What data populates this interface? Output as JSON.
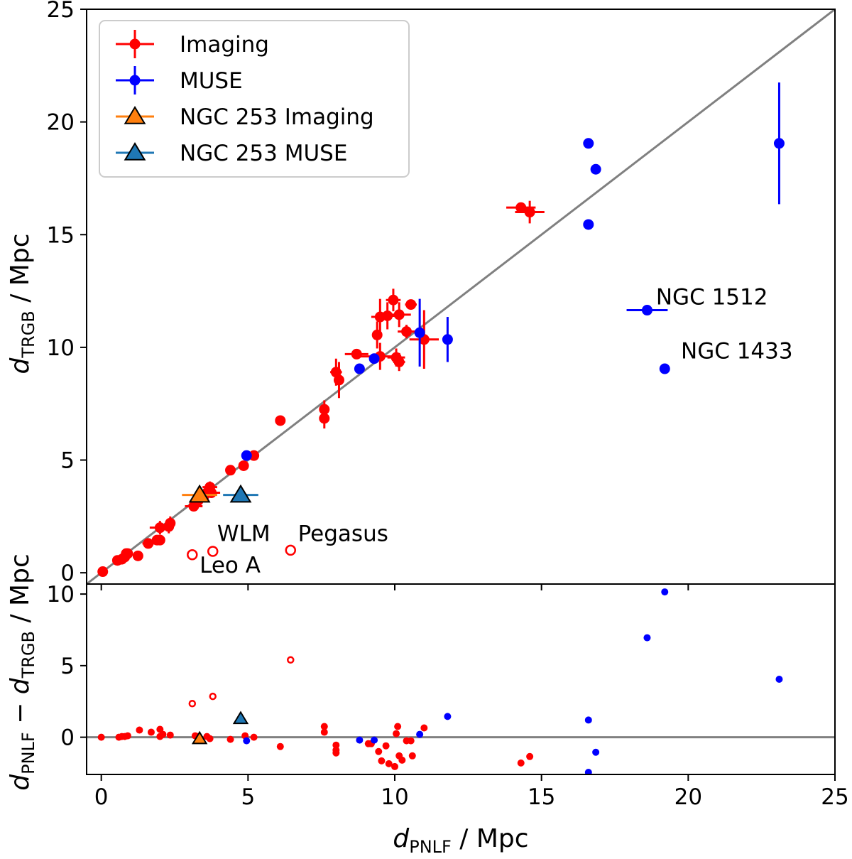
{
  "chart_data": [
    {
      "panel": "top",
      "type": "scatter",
      "xlabel": {
        "var": "d",
        "sub": "PNLF",
        "unit": " / Mpc"
      },
      "ylabel": {
        "var": "d",
        "sub": "TRGB",
        "unit": " / Mpc"
      },
      "xlim": [
        -0.5,
        25
      ],
      "ylim": [
        -0.5,
        25
      ],
      "xticks": [
        "0",
        "5",
        "10",
        "15",
        "20",
        "25"
      ],
      "yticks": [
        "0",
        "5",
        "10",
        "15",
        "20",
        "25"
      ],
      "reference_line": "y = x",
      "grid": false,
      "legend_position": "top-left",
      "legend": [
        {
          "label": "Imaging",
          "color": "#ff0000",
          "marker": "circle-errorbar"
        },
        {
          "label": "MUSE",
          "color": "#0000ff",
          "marker": "circle-errorbar"
        },
        {
          "label": "NGC 253 Imaging",
          "color": "#ff7f0e",
          "marker": "triangle-errorbar"
        },
        {
          "label": "NGC 253 MUSE",
          "color": "#1f77b4",
          "marker": "triangle-errorbar"
        }
      ],
      "series": [
        {
          "name": "Imaging",
          "color": "#ff0000",
          "points": [
            {
              "x": 0.05,
              "y": 0.05
            },
            {
              "x": 0.55,
              "y": 0.55
            },
            {
              "x": 0.7,
              "y": 0.6
            },
            {
              "x": 0.8,
              "y": 0.7
            },
            {
              "x": 0.85,
              "y": 0.85
            },
            {
              "x": 0.9,
              "y": 0.85
            },
            {
              "x": 1.25,
              "y": 0.75,
              "xerr": 0.15
            },
            {
              "x": 1.6,
              "y": 1.3,
              "xerr": 0.2
            },
            {
              "x": 1.9,
              "y": 1.45
            },
            {
              "x": 2.0,
              "y": 1.45
            },
            {
              "x": 2.0,
              "y": 2.0,
              "xerr": 0.35,
              "yerr": 0.3
            },
            {
              "x": 2.3,
              "y": 2.05,
              "yerr": 0.3
            },
            {
              "x": 2.35,
              "y": 2.2,
              "yerr": 0.3
            },
            {
              "x": 3.15,
              "y": 2.95,
              "xerr": 0.3
            },
            {
              "x": 3.3,
              "y": 3.2,
              "xerr": 0.25
            },
            {
              "x": 3.5,
              "y": 3.4,
              "xerr": 0.3,
              "yerr": 0.25
            },
            {
              "x": 3.6,
              "y": 3.55,
              "xerr": 0.3,
              "yerr": 0.25
            },
            {
              "x": 3.7,
              "y": 3.8,
              "xerr": 0.25,
              "yerr": 0.25
            },
            {
              "x": 3.75,
              "y": 3.55,
              "xerr": 0.3
            },
            {
              "x": 4.4,
              "y": 4.55,
              "xerr": 0.15,
              "yerr": 0.15
            },
            {
              "x": 4.85,
              "y": 4.75,
              "xerr": 0.15,
              "yerr": 0.15
            },
            {
              "x": 5.2,
              "y": 5.2,
              "xerr": 0.15,
              "yerr": 0.1
            },
            {
              "x": 6.1,
              "y": 6.75
            },
            {
              "x": 7.6,
              "y": 7.25,
              "yerr": 0.4
            },
            {
              "x": 7.6,
              "y": 6.85,
              "yerr": 0.45
            },
            {
              "x": 8.0,
              "y": 8.9,
              "xerr": 0.2,
              "yerr": 0.6
            },
            {
              "x": 8.1,
              "y": 8.55,
              "yerr": 0.8
            },
            {
              "x": 8.7,
              "y": 9.7,
              "xerr": 0.4
            },
            {
              "x": 9.4,
              "y": 10.55,
              "yerr": 0.6
            },
            {
              "x": 9.5,
              "y": 9.6,
              "xerr": 0.7,
              "yerr": 0.6
            },
            {
              "x": 9.5,
              "y": 11.35,
              "xerr": 0.3,
              "yerr": 0.8
            },
            {
              "x": 9.75,
              "y": 11.4,
              "xerr": 0.4,
              "yerr": 0.6
            },
            {
              "x": 9.95,
              "y": 12.1,
              "xerr": 0.25,
              "yerr": 0.5
            },
            {
              "x": 10.05,
              "y": 9.55,
              "xerr": 0.3,
              "yerr": 0.4
            },
            {
              "x": 10.15,
              "y": 9.35,
              "xerr": 0.2,
              "yerr": 0.4
            },
            {
              "x": 10.15,
              "y": 11.45,
              "xerr": 0.4,
              "yerr": 0.55
            },
            {
              "x": 10.4,
              "y": 10.7,
              "xerr": 0.3,
              "yerr": 0.3
            },
            {
              "x": 10.55,
              "y": 11.9,
              "xerr": 0.2
            },
            {
              "x": 11.0,
              "y": 10.35,
              "xerr": 0.5,
              "yerr": 1.3
            },
            {
              "x": 14.3,
              "y": 16.2,
              "xerr": 0.5
            },
            {
              "x": 14.6,
              "y": 16.0,
              "xerr": 0.5,
              "yerr": 0.5
            }
          ]
        },
        {
          "name": "Imaging (open)",
          "color": "#ff0000",
          "open": true,
          "points": [
            {
              "x": 3.1,
              "y": 0.8
            },
            {
              "x": 3.8,
              "y": 0.95
            },
            {
              "x": 6.45,
              "y": 1.0
            }
          ]
        },
        {
          "name": "MUSE",
          "color": "#0000ff",
          "points": [
            {
              "x": 4.95,
              "y": 5.2
            },
            {
              "x": 8.8,
              "y": 9.05
            },
            {
              "x": 9.3,
              "y": 9.5
            },
            {
              "x": 10.85,
              "y": 10.65,
              "yerr": 1.5
            },
            {
              "x": 11.8,
              "y": 10.35,
              "yerr": 1.0
            },
            {
              "x": 16.6,
              "y": 19.05
            },
            {
              "x": 16.85,
              "y": 17.9
            },
            {
              "x": 16.6,
              "y": 15.45
            },
            {
              "x": 18.6,
              "y": 11.65,
              "xerr": 0.7
            },
            {
              "x": 19.2,
              "y": 9.05
            },
            {
              "x": 23.1,
              "y": 19.05,
              "yerr": 2.7
            }
          ]
        },
        {
          "name": "NGC 253 Imaging",
          "color": "#ff7f0e",
          "marker": "triangle",
          "points": [
            {
              "x": 3.35,
              "y": 3.45,
              "xerr": 0.6
            }
          ]
        },
        {
          "name": "NGC 253 MUSE",
          "color": "#1f77b4",
          "marker": "triangle",
          "points": [
            {
              "x": 4.75,
              "y": 3.45,
              "xerr": 0.6
            }
          ]
        }
      ],
      "annotations": [
        {
          "text": "NGC 1512",
          "x": 18.9,
          "y": 11.9
        },
        {
          "text": "NGC 1433",
          "x": 19.75,
          "y": 9.5
        },
        {
          "text": "WLM",
          "x": 3.95,
          "y": 1.4
        },
        {
          "text": "Pegasus",
          "x": 6.7,
          "y": 1.4
        },
        {
          "text": "Leo A",
          "x": 3.35,
          "y": 0.0
        }
      ]
    },
    {
      "panel": "bottom",
      "type": "scatter",
      "xlabel": {
        "var": "d",
        "sub": "PNLF",
        "unit": " / Mpc"
      },
      "ylabel": {
        "var1": "d",
        "sub1": "PNLF",
        "minus": " − ",
        "var2": "d",
        "sub2": "TRGB",
        "unit": " / Mpc"
      },
      "xlim": [
        -0.5,
        25
      ],
      "ylim": [
        -2.6,
        10.7
      ],
      "xticks": [
        "0",
        "5",
        "10",
        "15",
        "20",
        "25"
      ],
      "yticks": [
        "0",
        "5",
        "10"
      ],
      "reference_line": "y = 0",
      "grid": false,
      "series": [
        {
          "name": "Imaging",
          "color": "#ff0000",
          "points": [
            {
              "x": 0.0,
              "y": 0.0
            },
            {
              "x": 0.6,
              "y": 0.0
            },
            {
              "x": 0.7,
              "y": 0.05
            },
            {
              "x": 0.8,
              "y": 0.05
            },
            {
              "x": 0.9,
              "y": 0.1
            },
            {
              "x": 1.3,
              "y": 0.5
            },
            {
              "x": 1.7,
              "y": 0.35
            },
            {
              "x": 2.0,
              "y": 0.55
            },
            {
              "x": 2.0,
              "y": 0.05
            },
            {
              "x": 2.1,
              "y": 0.2
            },
            {
              "x": 2.35,
              "y": 0.15
            },
            {
              "x": 3.2,
              "y": 0.1
            },
            {
              "x": 3.3,
              "y": 0.05
            },
            {
              "x": 3.6,
              "y": 0.05
            },
            {
              "x": 3.7,
              "y": -0.1
            },
            {
              "x": 4.4,
              "y": -0.15
            },
            {
              "x": 4.9,
              "y": 0.1
            },
            {
              "x": 5.2,
              "y": 0.0
            },
            {
              "x": 6.1,
              "y": -0.65
            },
            {
              "x": 7.6,
              "y": 0.75
            },
            {
              "x": 7.6,
              "y": 0.35
            },
            {
              "x": 8.0,
              "y": -0.9
            },
            {
              "x": 8.0,
              "y": -0.55
            },
            {
              "x": 8.0,
              "y": -1.1
            },
            {
              "x": 9.1,
              "y": -0.45
            },
            {
              "x": 9.2,
              "y": -0.45
            },
            {
              "x": 9.45,
              "y": -1.0
            },
            {
              "x": 9.55,
              "y": -1.65
            },
            {
              "x": 9.7,
              "y": -0.6
            },
            {
              "x": 9.8,
              "y": -1.85
            },
            {
              "x": 10.0,
              "y": -2.05
            },
            {
              "x": 10.05,
              "y": 0.25
            },
            {
              "x": 10.1,
              "y": 0.75
            },
            {
              "x": 10.15,
              "y": -1.3
            },
            {
              "x": 10.25,
              "y": -1.6
            },
            {
              "x": 10.4,
              "y": -0.25
            },
            {
              "x": 10.55,
              "y": -0.25
            },
            {
              "x": 10.6,
              "y": -1.3
            },
            {
              "x": 11.0,
              "y": 0.65
            },
            {
              "x": 14.3,
              "y": -1.8
            },
            {
              "x": 14.6,
              "y": -1.35
            }
          ]
        },
        {
          "name": "Imaging (open)",
          "color": "#ff0000",
          "open": true,
          "points": [
            {
              "x": 3.1,
              "y": 2.35
            },
            {
              "x": 3.8,
              "y": 2.85
            },
            {
              "x": 6.45,
              "y": 5.4
            }
          ]
        },
        {
          "name": "MUSE",
          "color": "#0000ff",
          "points": [
            {
              "x": 4.95,
              "y": -0.25
            },
            {
              "x": 8.8,
              "y": -0.2
            },
            {
              "x": 9.3,
              "y": -0.2
            },
            {
              "x": 10.85,
              "y": 0.2
            },
            {
              "x": 11.8,
              "y": 1.45
            },
            {
              "x": 16.6,
              "y": 1.2
            },
            {
              "x": 16.85,
              "y": -1.05
            },
            {
              "x": 16.6,
              "y": -2.45
            },
            {
              "x": 18.6,
              "y": 6.95
            },
            {
              "x": 19.2,
              "y": 10.15
            },
            {
              "x": 23.1,
              "y": 4.05
            }
          ]
        },
        {
          "name": "NGC 253 Imaging",
          "color": "#ff7f0e",
          "marker": "triangle",
          "points": [
            {
              "x": 3.35,
              "y": -0.1
            }
          ]
        },
        {
          "name": "NGC 253 MUSE",
          "color": "#1f77b4",
          "marker": "triangle",
          "points": [
            {
              "x": 4.75,
              "y": 1.3
            }
          ]
        }
      ]
    }
  ]
}
